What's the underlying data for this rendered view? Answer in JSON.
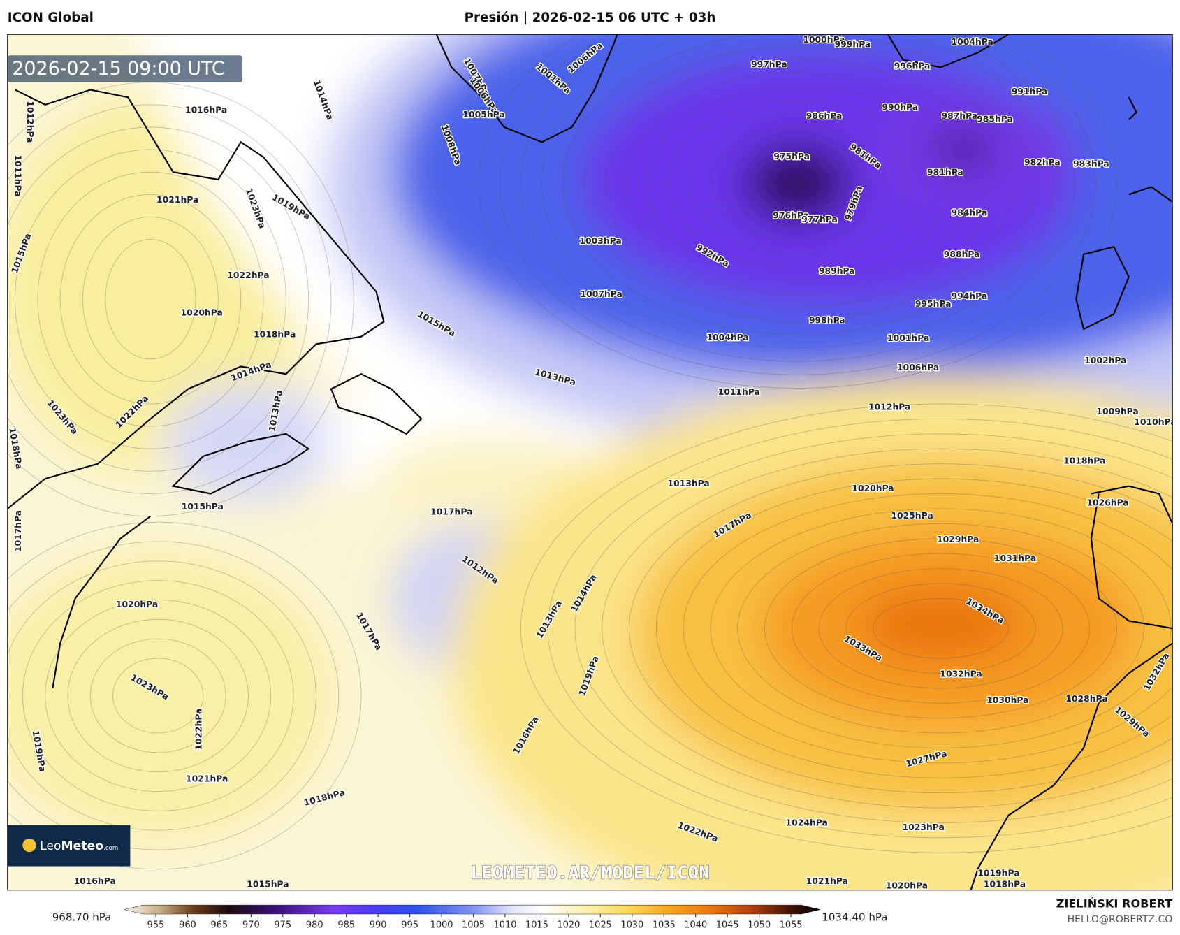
{
  "header": {
    "left_title": "ICON Global",
    "center_title": "Presión | 2026-02-15 06 UTC + 03h"
  },
  "map": {
    "valid_time": "2026-02-15 09:00 UTC",
    "watermark": "LEOMETEO.AR/MODEL/ICON",
    "logo": {
      "brand_light": "Leo",
      "brand_bold": "Meteo",
      "suffix": ".com"
    },
    "isobar_labels": [
      "1000hPa",
      "999hPa",
      "997hPa",
      "996hPa",
      "991hPa",
      "990hPa",
      "986hPa",
      "987hPa",
      "985hPa",
      "981hPa",
      "981hPa",
      "982hPa",
      "983hPa",
      "975hPa",
      "976hPa",
      "977hPa",
      "979hPa",
      "984hPa",
      "988hPa",
      "989hPa",
      "992hPa",
      "995hPa",
      "994hPa",
      "998hPa",
      "1001hPa",
      "1004hPa",
      "1006hPa",
      "1002hPa",
      "1003hPa",
      "1007hPa",
      "1008hPa",
      "1011hPa",
      "1012hPa",
      "1009hPa",
      "1010hPa",
      "1013hPa",
      "1015hPa",
      "1014hPa",
      "1016hPa",
      "1012hPa",
      "1011hPa",
      "1021hPa",
      "1023hPa",
      "1019hPa",
      "1022hPa",
      "1020hPa",
      "1018hPa",
      "1015hPa",
      "1014hPa",
      "1013hPa",
      "1023hPa",
      "1022hPa",
      "1018hPa",
      "1015hPa",
      "1017hPa",
      "1017hPa",
      "1013hPa",
      "1018hPa",
      "1020hPa",
      "1017hPa",
      "1026hPa",
      "1025hPa",
      "1029hPa",
      "1031hPa",
      "1012hPa",
      "1014hPa",
      "1013hPa",
      "1034hPa",
      "1033hPa",
      "1032hPa",
      "1030hPa",
      "1028hPa",
      "1029hPa",
      "1032hPa",
      "1020hPa",
      "1017hPa",
      "1023hPa",
      "1022hPa",
      "1019hPa",
      "1016hPa",
      "1019hPa",
      "1021hPa",
      "1018hPa",
      "1027hPa",
      "1024hPa",
      "1022hPa",
      "1023hPa",
      "1015hPa",
      "1016hPa",
      "1021hPa",
      "1020hPa",
      "1019hPa",
      "1018hPa",
      "1007hPa",
      "1006hPa",
      "1005hPa",
      "1001hPa",
      "1006hPa",
      "1004hPa"
    ]
  },
  "colorbar": {
    "min_label": "968.70 hPa",
    "max_label": "1034.40 hPa",
    "ticks": [
      955,
      960,
      965,
      970,
      975,
      980,
      985,
      990,
      995,
      1000,
      1005,
      1010,
      1015,
      1020,
      1025,
      1030,
      1035,
      1040,
      1045,
      1050,
      1055
    ]
  },
  "credits": {
    "author": "ZIELIŃSKI ROBERT",
    "email": "HELLO@ROBERTZ.CO"
  }
}
